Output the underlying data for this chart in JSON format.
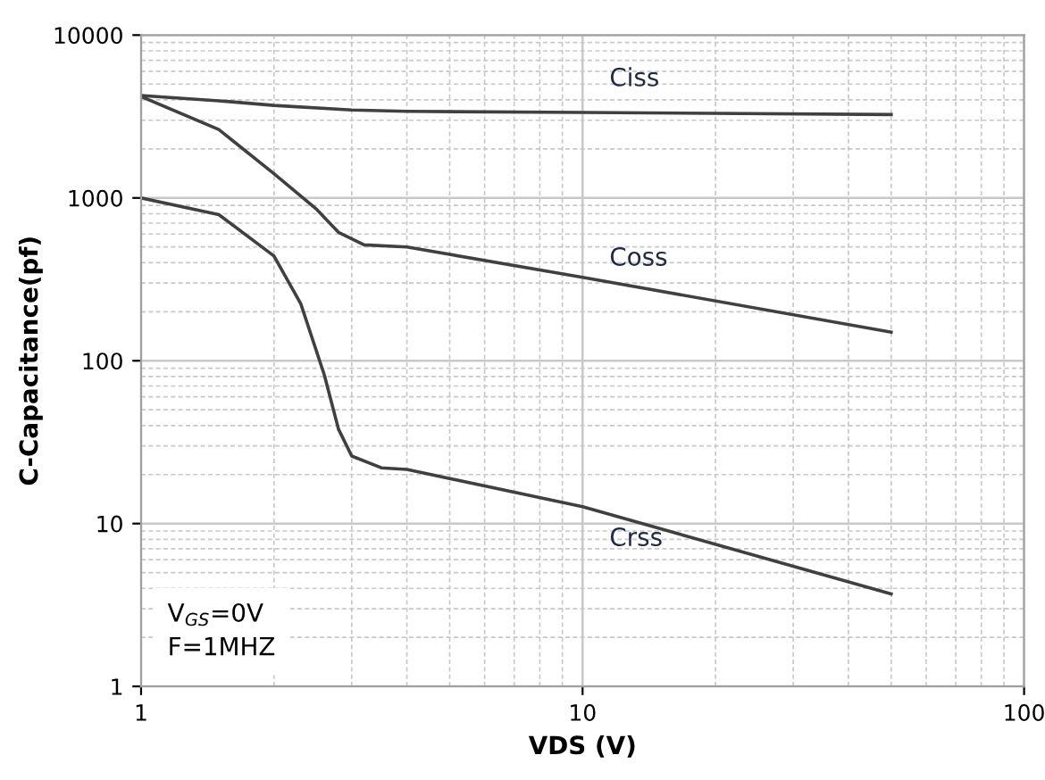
{
  "chart_data": {
    "type": "line",
    "xlabel": "VDS (V)",
    "ylabel": "C-Capacitance(pf)",
    "log": "xy",
    "grid": true,
    "legend": false,
    "marker": "none",
    "line_style": "solid",
    "xlim": [
      1,
      100
    ],
    "xticks": [
      1,
      10,
      100
    ],
    "ylim": [
      1,
      10000
    ],
    "yticks": [
      1,
      10,
      100,
      1000,
      10000
    ],
    "annotations": [
      "V$_{GS}$=0V",
      "F=1MHZ"
    ],
    "series": [
      {
        "name": "Ciss",
        "color": "#404040",
        "x": [
          1,
          1.5,
          2,
          3,
          4,
          10,
          50
        ],
        "values": [
          4260,
          3950,
          3700,
          3470,
          3400,
          3350,
          3250
        ]
      },
      {
        "name": "Coss",
        "color": "#404040",
        "x": [
          1,
          1.5,
          2,
          2.5,
          2.8,
          3.2,
          4,
          10,
          50
        ],
        "values": [
          4200,
          2630,
          1410,
          850,
          615,
          515,
          500,
          325,
          150
        ]
      },
      {
        "name": "Crss",
        "color": "#404040",
        "x": [
          1,
          1.5,
          2,
          2.3,
          2.6,
          2.8,
          3,
          3.5,
          4,
          10,
          50
        ],
        "values": [
          1000,
          790,
          440,
          224,
          82,
          38,
          26,
          22,
          21.5,
          12.7,
          3.7
        ]
      }
    ]
  }
}
